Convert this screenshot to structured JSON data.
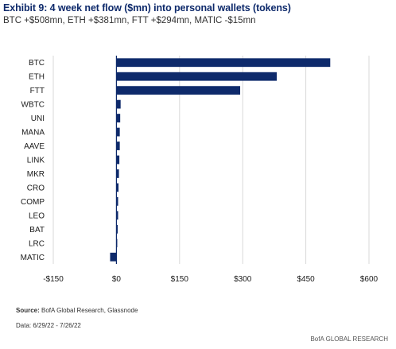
{
  "header": {
    "title": "Exhibit 9: 4 week net flow ($mn) into personal wallets (tokens)",
    "subtitle": "BTC +$508mn, ETH +$381mn, FTT +$294mn, MATIC -$15mn"
  },
  "footer": {
    "source_label": "Source:",
    "source_text": " BofA Global Research, Glassnode",
    "data_range": "Data: 6/29/22 - 7/26/22",
    "brand": "BofA GLOBAL RESEARCH"
  },
  "colors": {
    "bar": "#0e2a6b",
    "grid": "#d9d9d9",
    "zero_line": "#0e2a6b"
  },
  "chart_data": {
    "type": "bar",
    "orientation": "horizontal",
    "categories": [
      "BTC",
      "ETH",
      "FTT",
      "WBTC",
      "UNI",
      "MANA",
      "AAVE",
      "LINK",
      "MKR",
      "CRO",
      "COMP",
      "LEO",
      "BAT",
      "LRC",
      "MATIC"
    ],
    "values": [
      508,
      381,
      294,
      10,
      9,
      8,
      8,
      7,
      6,
      5,
      4,
      4,
      3,
      2,
      -15
    ],
    "xlim": [
      -150,
      600
    ],
    "xticks": [
      -150,
      0,
      150,
      300,
      450,
      600
    ],
    "xtick_labels": [
      "-$150",
      "$0",
      "$150",
      "$300",
      "$450",
      "$600"
    ],
    "grid": "vertical",
    "title": "Exhibit 9: 4 week net flow ($mn) into personal wallets (tokens)",
    "xlabel": "",
    "ylabel": ""
  }
}
